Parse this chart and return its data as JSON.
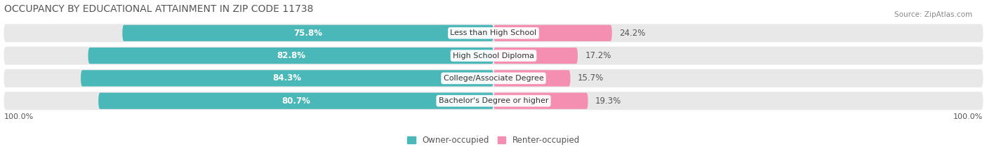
{
  "title": "OCCUPANCY BY EDUCATIONAL ATTAINMENT IN ZIP CODE 11738",
  "source": "Source: ZipAtlas.com",
  "categories": [
    "Less than High School",
    "High School Diploma",
    "College/Associate Degree",
    "Bachelor's Degree or higher"
  ],
  "owner_pct": [
    75.8,
    82.8,
    84.3,
    80.7
  ],
  "renter_pct": [
    24.2,
    17.2,
    15.7,
    19.3
  ],
  "owner_color": "#4ab8b8",
  "renter_color": "#f48fb1",
  "row_bg_color": "#e8e8e8",
  "title_fontsize": 10,
  "label_fontsize": 8.5,
  "pct_fontsize": 8.5,
  "tick_fontsize": 8,
  "legend_fontsize": 8.5,
  "source_fontsize": 7.5,
  "background_color": "#ffffff"
}
